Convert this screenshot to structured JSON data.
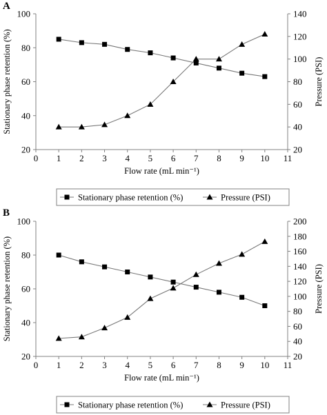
{
  "chart_data": [
    {
      "panel": "A",
      "type": "line",
      "xlabel": "Flow rate (mL min⁻¹)",
      "ylabel_left": "Stationary phase retention (%)",
      "ylabel_right": "Pressure (PSI)",
      "xlim": [
        0,
        11
      ],
      "xticks": [
        0,
        1,
        2,
        3,
        4,
        5,
        6,
        7,
        8,
        9,
        10,
        11
      ],
      "ylim_left": [
        20,
        100
      ],
      "yticks_left": [
        20,
        40,
        60,
        80,
        100
      ],
      "ylim_right": [
        20,
        140
      ],
      "yticks_right": [
        20,
        40,
        60,
        80,
        100,
        120,
        140
      ],
      "legend_position": "bottom",
      "series": [
        {
          "name": "Stationary phase retention (%)",
          "axis": "left",
          "marker": "square",
          "x": [
            1,
            2,
            3,
            4,
            5,
            6,
            7,
            8,
            9,
            10
          ],
          "values": [
            85,
            83,
            82,
            79,
            77,
            74,
            71,
            68,
            65,
            63
          ]
        },
        {
          "name": "Pressure (PSI)",
          "axis": "right",
          "marker": "triangle",
          "x": [
            1,
            2,
            3,
            4,
            5,
            6,
            7,
            8,
            9,
            10
          ],
          "values": [
            40,
            40,
            42,
            50,
            60,
            80,
            100,
            100,
            113,
            122
          ]
        }
      ]
    },
    {
      "panel": "B",
      "type": "line",
      "xlabel": "Flow rate (mL min⁻¹)",
      "ylabel_left": "Stationary phase retention (%)",
      "ylabel_right": "Pressure (PSI)",
      "xlim": [
        0,
        11
      ],
      "xticks": [
        0,
        1,
        2,
        3,
        4,
        5,
        6,
        7,
        8,
        9,
        10,
        11
      ],
      "ylim_left": [
        20,
        100
      ],
      "yticks_left": [
        20,
        40,
        60,
        80,
        100
      ],
      "ylim_right": [
        20,
        200
      ],
      "yticks_right": [
        20,
        40,
        60,
        80,
        100,
        120,
        140,
        160,
        180,
        200
      ],
      "legend_position": "bottom",
      "series": [
        {
          "name": "Stationary phase retention (%)",
          "axis": "left",
          "marker": "square",
          "x": [
            1,
            2,
            3,
            4,
            5,
            6,
            7,
            8,
            9,
            10
          ],
          "values": [
            80,
            76,
            73,
            70,
            67,
            64,
            61,
            58,
            55,
            50
          ]
        },
        {
          "name": "Pressure (PSI)",
          "axis": "right",
          "marker": "triangle",
          "x": [
            1,
            2,
            3,
            4,
            5,
            6,
            7,
            8,
            9,
            10
          ],
          "values": [
            44,
            46,
            58,
            72,
            97,
            111,
            129,
            144,
            156,
            173
          ]
        }
      ]
    }
  ]
}
